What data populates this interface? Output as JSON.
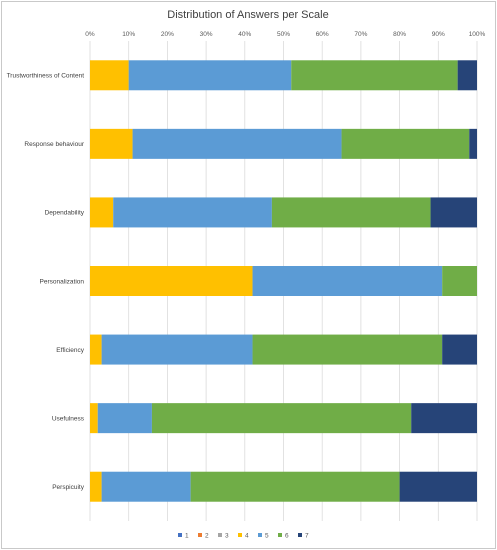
{
  "chart_data": {
    "type": "bar",
    "orientation": "horizontal",
    "stacked": "percent",
    "title": "Distribution of Answers per Scale",
    "categories": [
      "Trustworthiness of Content",
      "Response behaviour",
      "Dependability",
      "Personalization",
      "Efficiency",
      "Usefulness",
      "Perspicuity"
    ],
    "series": [
      {
        "name": "1",
        "color": "#4472c4",
        "values": [
          0,
          0,
          0,
          0,
          0,
          0,
          0
        ]
      },
      {
        "name": "2",
        "color": "#ed7d31",
        "values": [
          0,
          0,
          0,
          0,
          0,
          0,
          0
        ]
      },
      {
        "name": "3",
        "color": "#a5a5a5",
        "values": [
          0,
          0,
          0,
          0,
          0,
          0,
          0
        ]
      },
      {
        "name": "4",
        "color": "#ffc000",
        "values": [
          10,
          11,
          6,
          42,
          3,
          2,
          3
        ]
      },
      {
        "name": "5",
        "color": "#5b9bd5",
        "values": [
          42,
          54,
          41,
          49,
          39,
          14,
          23
        ]
      },
      {
        "name": "6",
        "color": "#70ad47",
        "values": [
          43,
          33,
          41,
          9,
          49,
          67,
          54
        ]
      },
      {
        "name": "7",
        "color": "#264478",
        "values": [
          5,
          2,
          12,
          0,
          9,
          17,
          20
        ]
      }
    ],
    "xlim": [
      0,
      100
    ],
    "x_ticks": [
      "0%",
      "10%",
      "20%",
      "30%",
      "40%",
      "50%",
      "60%",
      "70%",
      "80%",
      "90%",
      "100%"
    ],
    "grid": true,
    "legend_position": "bottom"
  }
}
